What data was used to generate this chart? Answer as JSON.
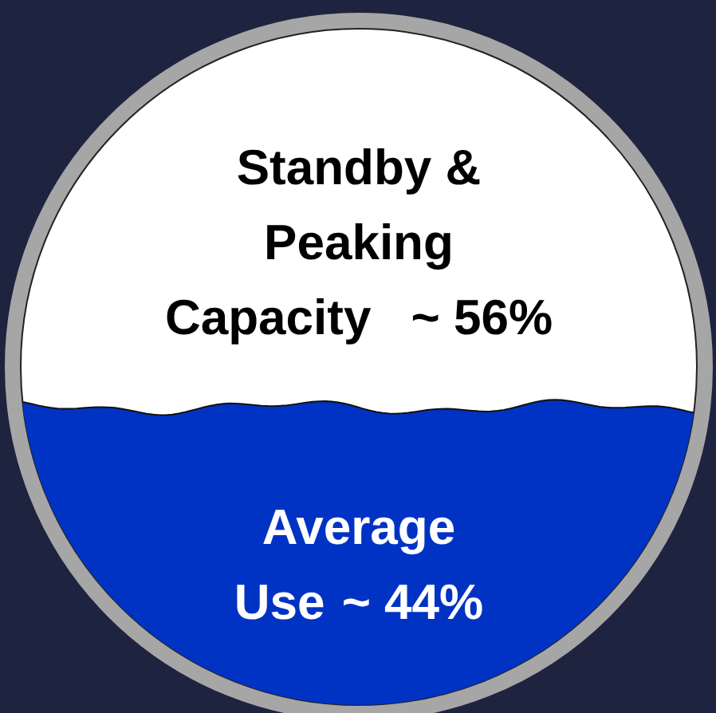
{
  "chart_data": {
    "type": "other",
    "categories": [
      "Standby & Peaking Capacity",
      "Average Use"
    ],
    "values": [
      56,
      44
    ],
    "value_labels": [
      "~ 56%",
      "~ 44%"
    ],
    "colors": [
      "#ffffff",
      "#0033c4"
    ]
  }
}
